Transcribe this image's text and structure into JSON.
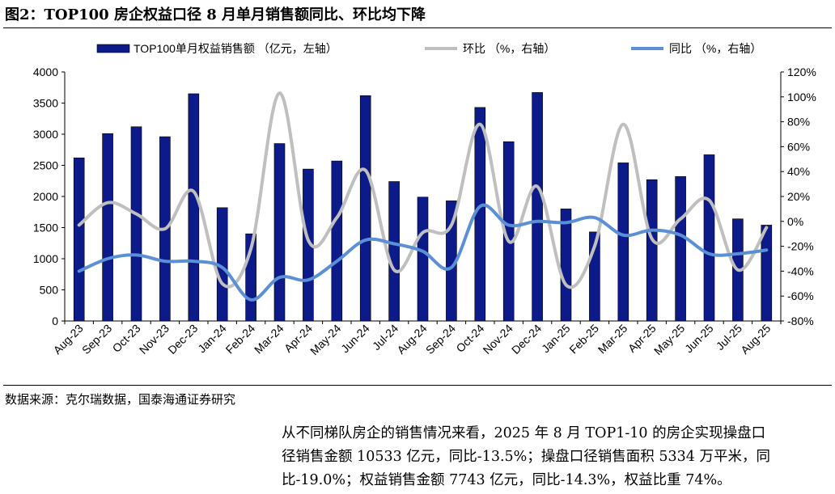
{
  "title": "图2：TOP100 房企权益口径 8 月单月销售额同比、环比均下降",
  "source": "数据来源：克尔瑞数据，国泰海通证券研究",
  "paragraph_lines": [
    "从不同梯队房企的销售情况来看，2025 年 8 月 TOP1-10 的房企实现操盘口",
    "径销售金额 10533 亿元，同比-13.5%；操盘口径销售面积 5334 万平米，同",
    "比-19.0%；权益销售金额 7743 亿元，同比-14.3%，权益比重 74%。"
  ],
  "chart_data": {
    "type": "bar",
    "categories": [
      "Aug-23",
      "Sep-23",
      "Oct-23",
      "Nov-23",
      "Dec-23",
      "Jan-24",
      "Feb-24",
      "Mar-24",
      "Apr-24",
      "May-24",
      "Jun-24",
      "Jul-24",
      "Aug-24",
      "Sep-24",
      "Oct-24",
      "Nov-24",
      "Dec-24",
      "Jan-25",
      "Feb-25",
      "Mar-25",
      "Apr-25",
      "May-25",
      "Jun-25",
      "Jul-25",
      "Aug-25"
    ],
    "series": [
      {
        "name": "TOP100单月权益销售额 （亿元，左轴）",
        "type": "bar",
        "axis": "left",
        "color": "#0d1a8a",
        "values": [
          2620,
          3010,
          3120,
          2960,
          3650,
          1820,
          1400,
          2850,
          2440,
          2570,
          3620,
          2240,
          1990,
          1930,
          3430,
          2880,
          3670,
          1800,
          1430,
          2540,
          2270,
          2320,
          2670,
          1640,
          1540
        ]
      },
      {
        "name": "环比 （%，右轴）",
        "type": "line",
        "axis": "right",
        "color": "#bfbfbf",
        "values": [
          -3,
          15,
          6,
          -6,
          24,
          -50,
          -22,
          103,
          -15,
          3,
          41,
          -39,
          -9,
          -3,
          78,
          -16,
          28,
          -51,
          -20,
          78,
          -14,
          2,
          17,
          -39,
          -5
        ]
      },
      {
        "name": "同比 （%，右轴）",
        "type": "line",
        "axis": "right",
        "color": "#5b8fd6",
        "values": [
          -40,
          -30,
          -27,
          -32,
          -32,
          -37,
          -63,
          -45,
          -47,
          -32,
          -15,
          -18,
          -24,
          -37,
          12,
          -3,
          0,
          -1,
          3,
          -11,
          -7,
          -11,
          -26,
          -26,
          -23
        ]
      }
    ],
    "left_axis": {
      "min": 0,
      "max": 4000,
      "ticks": [
        "0",
        "500",
        "1000",
        "1500",
        "2000",
        "2500",
        "3000",
        "3500",
        "4000"
      ]
    },
    "right_axis": {
      "min": -80,
      "max": 120,
      "ticks": [
        "-80%",
        "-60%",
        "-40%",
        "-20%",
        "0%",
        "20%",
        "40%",
        "60%",
        "80%",
        "100%",
        "120%"
      ]
    },
    "legend": "top",
    "grid": false
  }
}
